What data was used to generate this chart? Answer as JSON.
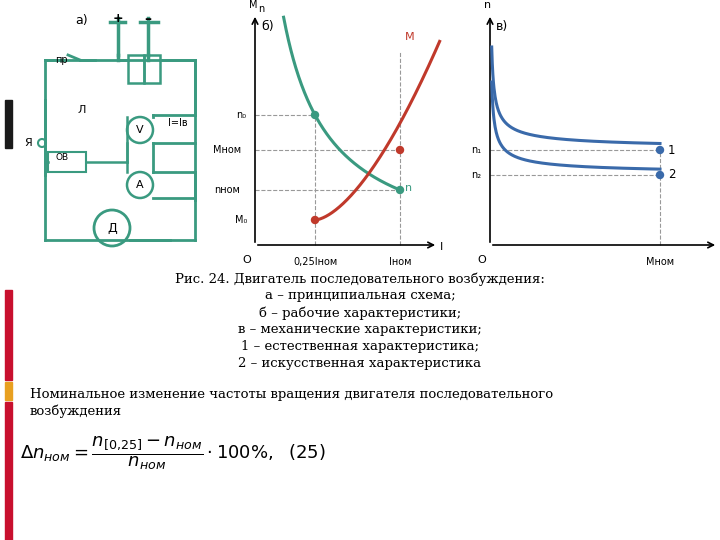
{
  "title_lines": [
    "Рис. 24. Двигатель последовательного возбуждения:",
    "а – принципиальная схема;",
    "б – рабочие характеристики;",
    "в – механические характеристики;",
    "1 – естественная характеристика;",
    "2 – искусственная характеристика"
  ],
  "para_line1": "Номинальное изменение частоты вращения двигателя последовательного",
  "para_line2": "возбуждения",
  "sidebar_black": "#1a1a1a",
  "sidebar_red": "#c8102e",
  "sidebar_orange": "#e8a020",
  "bg_color": "#ffffff",
  "teal": "#3a9a80",
  "red": "#c0392b",
  "blue": "#3a6aaa"
}
